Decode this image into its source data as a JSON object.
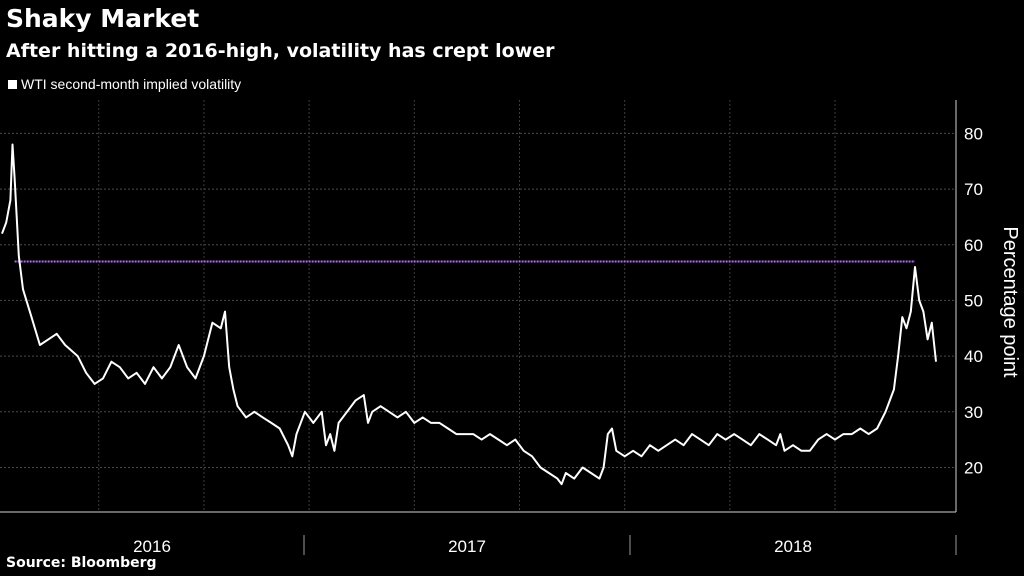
{
  "chart_data": {
    "type": "line",
    "title": "Shaky Market",
    "subtitle": "After hitting a 2016-high, volatility has crept lower",
    "ylabel": "Percentage point",
    "source": "Source: Bloomberg",
    "ylim": [
      12,
      86
    ],
    "y_ticks": [
      20,
      30,
      40,
      50,
      60,
      70,
      80
    ],
    "x_categories": [
      "2016",
      "2017",
      "2018"
    ],
    "grid": true,
    "legend_position": "top-left",
    "series": [
      {
        "name": "WTI second-month implied volatility",
        "color": "#ffffff",
        "points": [
          [
            0.0,
            62
          ],
          [
            0.01,
            64
          ],
          [
            0.02,
            68
          ],
          [
            0.025,
            78
          ],
          [
            0.03,
            72
          ],
          [
            0.04,
            58
          ],
          [
            0.05,
            52
          ],
          [
            0.07,
            47
          ],
          [
            0.09,
            42
          ],
          [
            0.11,
            43
          ],
          [
            0.13,
            44
          ],
          [
            0.15,
            42
          ],
          [
            0.18,
            40
          ],
          [
            0.2,
            37
          ],
          [
            0.22,
            35
          ],
          [
            0.24,
            36
          ],
          [
            0.26,
            39
          ],
          [
            0.28,
            38
          ],
          [
            0.3,
            36
          ],
          [
            0.32,
            37
          ],
          [
            0.34,
            35
          ],
          [
            0.36,
            38
          ],
          [
            0.38,
            36
          ],
          [
            0.4,
            38
          ],
          [
            0.42,
            42
          ],
          [
            0.44,
            38
          ],
          [
            0.46,
            36
          ],
          [
            0.48,
            40
          ],
          [
            0.5,
            46
          ],
          [
            0.52,
            45
          ],
          [
            0.53,
            48
          ],
          [
            0.54,
            38
          ],
          [
            0.55,
            34
          ],
          [
            0.56,
            31
          ],
          [
            0.58,
            29
          ],
          [
            0.6,
            30
          ],
          [
            0.62,
            29
          ],
          [
            0.64,
            28
          ],
          [
            0.66,
            27
          ],
          [
            0.68,
            24
          ],
          [
            0.69,
            22
          ],
          [
            0.7,
            26
          ],
          [
            0.72,
            30
          ],
          [
            0.74,
            28
          ],
          [
            0.76,
            30
          ],
          [
            0.77,
            24
          ],
          [
            0.78,
            26
          ],
          [
            0.79,
            23
          ],
          [
            0.8,
            28
          ],
          [
            0.82,
            30
          ],
          [
            0.84,
            32
          ],
          [
            0.86,
            33
          ],
          [
            0.87,
            28
          ],
          [
            0.88,
            30
          ],
          [
            0.9,
            31
          ],
          [
            0.92,
            30
          ],
          [
            0.94,
            29
          ],
          [
            0.96,
            30
          ],
          [
            0.98,
            28
          ],
          [
            1.0,
            29
          ],
          [
            1.02,
            28
          ],
          [
            1.04,
            28
          ],
          [
            1.06,
            27
          ],
          [
            1.08,
            26
          ],
          [
            1.1,
            26
          ],
          [
            1.12,
            26
          ],
          [
            1.14,
            25
          ],
          [
            1.16,
            26
          ],
          [
            1.18,
            25
          ],
          [
            1.2,
            24
          ],
          [
            1.22,
            25
          ],
          [
            1.24,
            23
          ],
          [
            1.26,
            22
          ],
          [
            1.28,
            20
          ],
          [
            1.3,
            19
          ],
          [
            1.32,
            18
          ],
          [
            1.33,
            17
          ],
          [
            1.34,
            19
          ],
          [
            1.36,
            18
          ],
          [
            1.38,
            20
          ],
          [
            1.4,
            19
          ],
          [
            1.42,
            18
          ],
          [
            1.43,
            20
          ],
          [
            1.44,
            26
          ],
          [
            1.45,
            27
          ],
          [
            1.46,
            23
          ],
          [
            1.48,
            22
          ],
          [
            1.5,
            23
          ],
          [
            1.52,
            22
          ],
          [
            1.54,
            24
          ],
          [
            1.56,
            23
          ],
          [
            1.58,
            24
          ],
          [
            1.6,
            25
          ],
          [
            1.62,
            24
          ],
          [
            1.64,
            26
          ],
          [
            1.66,
            25
          ],
          [
            1.68,
            24
          ],
          [
            1.7,
            26
          ],
          [
            1.72,
            25
          ],
          [
            1.74,
            26
          ],
          [
            1.76,
            25
          ],
          [
            1.78,
            24
          ],
          [
            1.8,
            26
          ],
          [
            1.82,
            25
          ],
          [
            1.84,
            24
          ],
          [
            1.85,
            26
          ],
          [
            1.86,
            23
          ],
          [
            1.88,
            24
          ],
          [
            1.9,
            23
          ],
          [
            1.92,
            23
          ],
          [
            1.94,
            25
          ],
          [
            1.96,
            26
          ],
          [
            1.98,
            25
          ],
          [
            2.0,
            26
          ],
          [
            2.02,
            26
          ],
          [
            2.04,
            27
          ],
          [
            2.06,
            26
          ],
          [
            2.08,
            27
          ],
          [
            2.1,
            30
          ],
          [
            2.12,
            34
          ],
          [
            2.13,
            40
          ],
          [
            2.14,
            47
          ],
          [
            2.15,
            45
          ],
          [
            2.16,
            48
          ],
          [
            2.17,
            56
          ],
          [
            2.18,
            50
          ],
          [
            2.19,
            48
          ],
          [
            2.2,
            43
          ],
          [
            2.21,
            46
          ],
          [
            2.22,
            39
          ]
        ]
      }
    ],
    "reference_line": {
      "value": 57,
      "color": "#b56cf0"
    }
  }
}
